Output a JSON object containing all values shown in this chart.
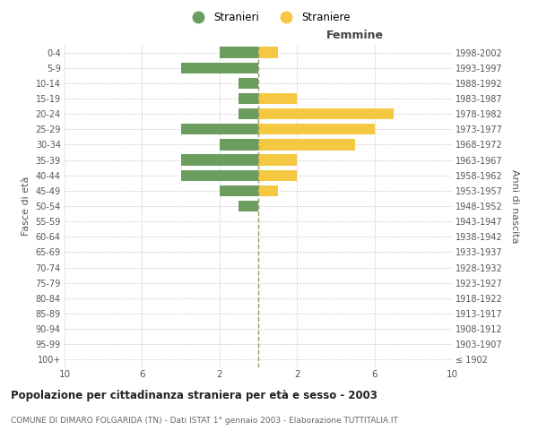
{
  "age_groups": [
    "100+",
    "95-99",
    "90-94",
    "85-89",
    "80-84",
    "75-79",
    "70-74",
    "65-69",
    "60-64",
    "55-59",
    "50-54",
    "45-49",
    "40-44",
    "35-39",
    "30-34",
    "25-29",
    "20-24",
    "15-19",
    "10-14",
    "5-9",
    "0-4"
  ],
  "birth_years": [
    "≤ 1902",
    "1903-1907",
    "1908-1912",
    "1913-1917",
    "1918-1922",
    "1923-1927",
    "1928-1932",
    "1933-1937",
    "1938-1942",
    "1943-1947",
    "1948-1952",
    "1953-1957",
    "1958-1962",
    "1963-1967",
    "1968-1972",
    "1973-1977",
    "1978-1982",
    "1983-1987",
    "1988-1992",
    "1993-1997",
    "1998-2002"
  ],
  "males": [
    0,
    0,
    0,
    0,
    0,
    0,
    0,
    0,
    0,
    0,
    1,
    2,
    4,
    4,
    2,
    4,
    1,
    1,
    1,
    4,
    2
  ],
  "females": [
    0,
    0,
    0,
    0,
    0,
    0,
    0,
    0,
    0,
    0,
    0,
    1,
    2,
    2,
    5,
    6,
    7,
    2,
    0,
    0,
    1
  ],
  "male_color": "#6b9e5e",
  "female_color": "#f5c842",
  "center_line_color": "#9b9b6a",
  "xlim": 10,
  "title": "Popolazione per cittadinanza straniera per età e sesso - 2003",
  "subtitle": "COMUNE DI DIMARO FOLGARIDA (TN) - Dati ISTAT 1° gennaio 2003 - Elaborazione TUTTITALIA.IT",
  "xlabel_right": "Femmine",
  "ylabel_left": "Fasce di età",
  "ylabel_right": "Anni di nascita",
  "legend_male": "Stranieri",
  "legend_female": "Straniere",
  "bg_color": "#ffffff",
  "grid_color": "#cccccc"
}
